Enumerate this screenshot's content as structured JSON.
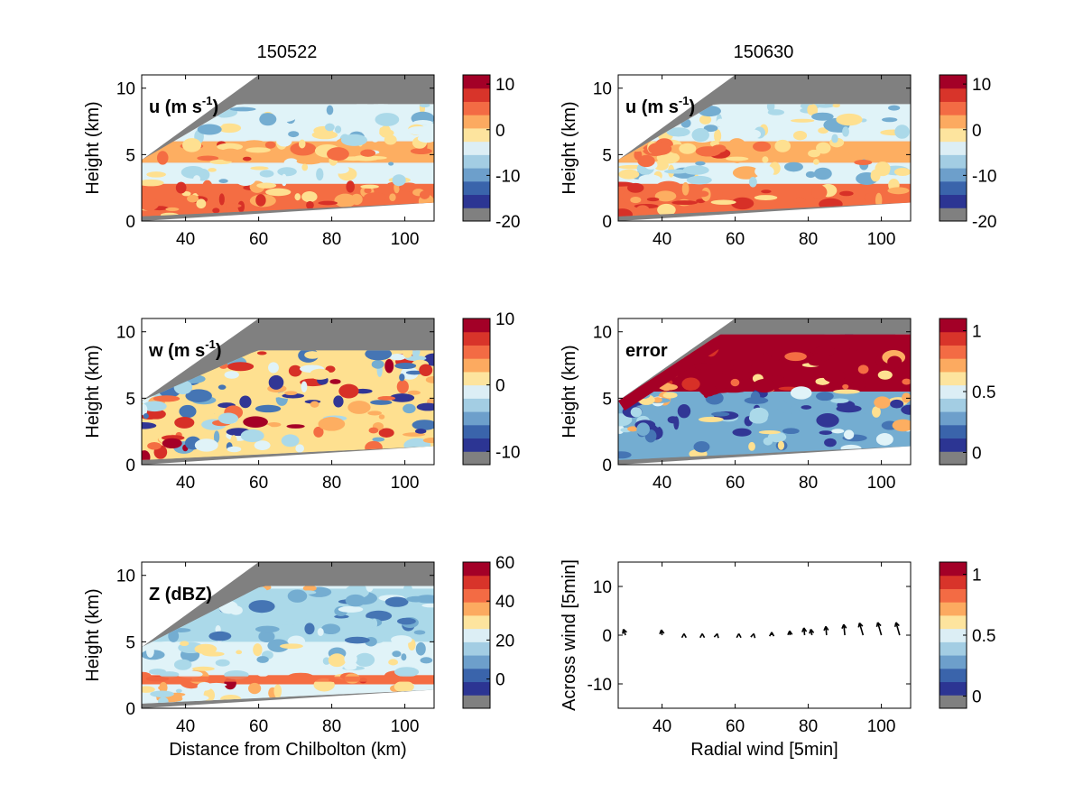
{
  "figure": {
    "columns": [
      "150522",
      "150630"
    ]
  },
  "colors": {
    "gray": "#808080",
    "scale": [
      "#313695",
      "#4575b4",
      "#74add1",
      "#abd9e9",
      "#e0f3f8",
      "#fee090",
      "#fdae61",
      "#f46d43",
      "#d73027",
      "#a50026"
    ],
    "colorbar_ramp": [
      "#808080",
      "#2c3593",
      "#3a64ab",
      "#6d9fcb",
      "#a3cde3",
      "#dceef5",
      "#fde49e",
      "#fcaa60",
      "#f36b44",
      "#d8342a",
      "#a30027"
    ]
  },
  "chart_data": [
    {
      "id": "u-150522",
      "type": "heatmap",
      "panel_label": "u (m s",
      "panel_label_sup": "-1",
      "ylabel": "Height (km)",
      "xlabel": "",
      "xlim": [
        28,
        108
      ],
      "ylim": [
        0,
        11
      ],
      "xticks": [
        "40",
        "60",
        "80",
        "100"
      ],
      "yticks": [
        "0",
        "5",
        "10"
      ],
      "colorbar": {
        "ticks": [
          "10",
          "0",
          "-10",
          "-20"
        ],
        "range": [
          -20,
          12
        ]
      },
      "bands": [
        {
          "y": [
            0.5,
            2.8
          ],
          "value": 3
        },
        {
          "y": [
            2.8,
            4.4
          ],
          "value": -6
        },
        {
          "y": [
            4.4,
            6.0
          ],
          "value": 1
        },
        {
          "y": [
            6.0,
            9.0
          ],
          "value": -7
        }
      ]
    },
    {
      "id": "u-150630",
      "type": "heatmap",
      "panel_label": "u (m s",
      "panel_label_sup": "-1",
      "ylabel": "Height (km)",
      "xlabel": "",
      "xlim": [
        28,
        108
      ],
      "ylim": [
        0,
        11
      ],
      "xticks": [
        "40",
        "60",
        "80",
        "100"
      ],
      "yticks": [
        "0",
        "5",
        "10"
      ],
      "colorbar": {
        "ticks": [
          "10",
          "0",
          "-10",
          "-20"
        ],
        "range": [
          -20,
          12
        ]
      },
      "bands": [
        {
          "y": [
            0.5,
            2.8
          ],
          "value": 3
        },
        {
          "y": [
            2.8,
            4.4
          ],
          "value": -6
        },
        {
          "y": [
            4.4,
            6.0
          ],
          "value": 1
        },
        {
          "y": [
            6.0,
            9.0
          ],
          "value": -7
        }
      ]
    },
    {
      "id": "w-150522",
      "type": "heatmap",
      "panel_label": "w (m s",
      "panel_label_sup": "-1",
      "ylabel": "Height (km)",
      "xlabel": "",
      "xlim": [
        28,
        108
      ],
      "ylim": [
        0,
        11
      ],
      "xticks": [
        "40",
        "60",
        "80",
        "100"
      ],
      "yticks": [
        "0",
        "5",
        "10"
      ],
      "colorbar": {
        "ticks": [
          "10",
          "0",
          "-10"
        ],
        "range": [
          -12,
          10
        ]
      },
      "bands": [
        {
          "y": [
            0.3,
            9.5
          ],
          "value": -1
        }
      ]
    },
    {
      "id": "error-150630",
      "type": "heatmap",
      "panel_label": "error",
      "panel_label_sup": "",
      "ylabel": "Height (km)",
      "xlabel": "",
      "xlim": [
        28,
        108
      ],
      "ylim": [
        0,
        11
      ],
      "xticks": [
        "40",
        "60",
        "80",
        "100"
      ],
      "yticks": [
        "0",
        "5",
        "10"
      ],
      "colorbar": {
        "ticks": [
          "1",
          "0.5",
          "0"
        ],
        "range": [
          -0.1,
          1.1
        ]
      },
      "bands": [
        {
          "y": [
            0.3,
            5.5
          ],
          "value": 0.2
        },
        {
          "y": [
            5.5,
            9.5
          ],
          "value": 1.05
        }
      ]
    },
    {
      "id": "z-150522",
      "type": "heatmap",
      "panel_label": "Z (dBZ)",
      "panel_label_sup": "",
      "ylabel": "Height (km)",
      "xlabel": "Distance from Chilbolton (km)",
      "xlim": [
        28,
        108
      ],
      "ylim": [
        0,
        11
      ],
      "xticks": [
        "40",
        "60",
        "80",
        "100"
      ],
      "yticks": [
        "0",
        "5",
        "10"
      ],
      "colorbar": {
        "ticks": [
          "60",
          "40",
          "20",
          "0"
        ],
        "range": [
          -15,
          60
        ]
      },
      "bands": [
        {
          "y": [
            0.3,
            1.8
          ],
          "value": 22
        },
        {
          "y": [
            1.8,
            2.5
          ],
          "value": 42
        },
        {
          "y": [
            2.5,
            5.0
          ],
          "value": 16
        },
        {
          "y": [
            5.0,
            9.0
          ],
          "value": 8
        }
      ]
    },
    {
      "id": "wind-150630",
      "type": "scatter",
      "panel_label": "",
      "panel_label_sup": "",
      "ylabel": "Across wind [5min]",
      "xlabel": "Radial wind [5min]",
      "xlim": [
        28,
        108
      ],
      "ylim": [
        -15,
        15
      ],
      "xticks": [
        "40",
        "60",
        "80",
        "100"
      ],
      "yticks": [
        "-10",
        "0",
        "10"
      ],
      "colorbar": {
        "ticks": [
          "1",
          "0.5",
          "0"
        ],
        "range": [
          -0.1,
          1.1
        ]
      },
      "vectors": [
        {
          "x": 30,
          "u": -0.6,
          "v": 1.2
        },
        {
          "x": 40,
          "u": -0.2,
          "v": 1.1
        },
        {
          "x": 46,
          "u": 0.0,
          "v": 0.3
        },
        {
          "x": 51,
          "u": 0.0,
          "v": 0.3
        },
        {
          "x": 55,
          "u": 0.1,
          "v": 0.3
        },
        {
          "x": 61,
          "u": 0.0,
          "v": 0.3
        },
        {
          "x": 65,
          "u": 0.1,
          "v": 0.3
        },
        {
          "x": 70,
          "u": 0.0,
          "v": 0.6
        },
        {
          "x": 75,
          "u": -0.1,
          "v": 0.9
        },
        {
          "x": 79,
          "u": -0.2,
          "v": 1.5
        },
        {
          "x": 81,
          "u": -0.3,
          "v": 1.2
        },
        {
          "x": 85,
          "u": -0.2,
          "v": 1.8
        },
        {
          "x": 90,
          "u": -0.3,
          "v": 2.2
        },
        {
          "x": 95,
          "u": -1.0,
          "v": 2.5
        },
        {
          "x": 100,
          "u": -1.0,
          "v": 2.6
        },
        {
          "x": 105,
          "u": -1.0,
          "v": 2.6
        }
      ]
    }
  ]
}
